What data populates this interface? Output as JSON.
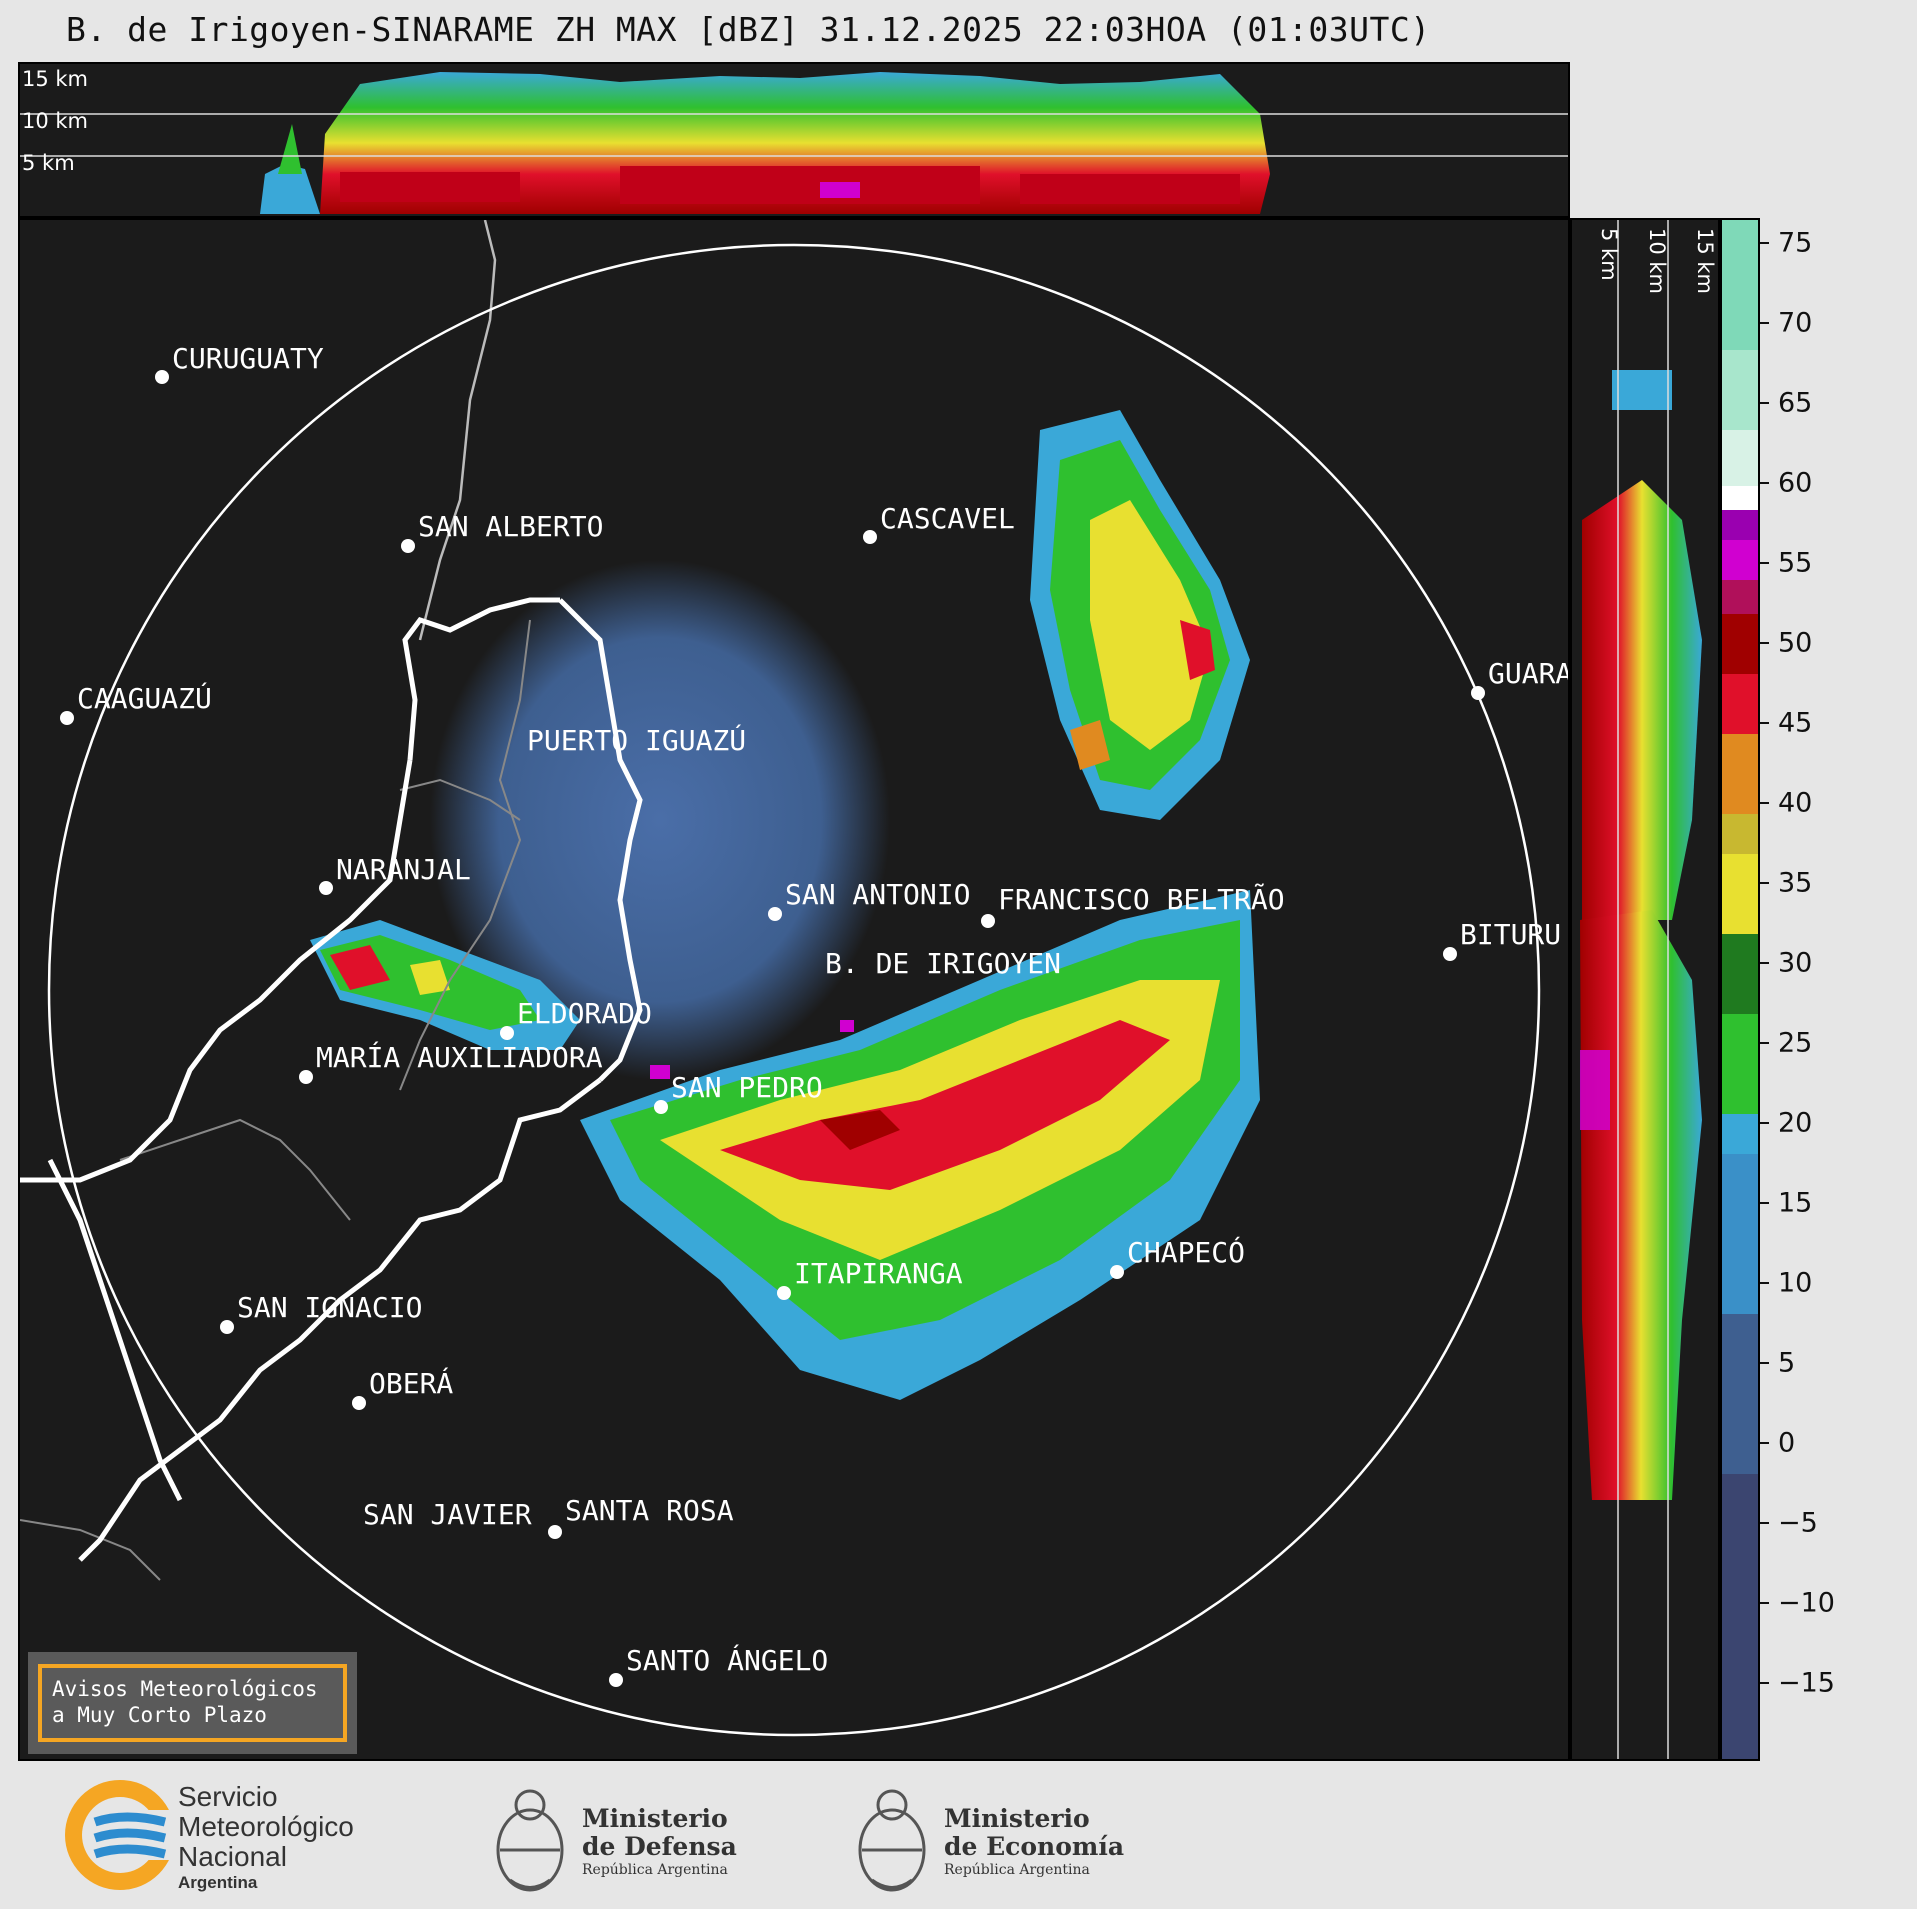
{
  "title": "B. de Irigoyen-SINARAME ZH MAX [dBZ] 31.12.2025 22:03HOA (01:03UTC)",
  "top_panel": {
    "altitude_labels": [
      "15 km",
      "10 km",
      "5 km"
    ]
  },
  "side_panel": {
    "altitude_labels": [
      "5 km",
      "10 km",
      "15 km"
    ]
  },
  "colorbar": {
    "ticks": [
      "75",
      "70",
      "65",
      "60",
      "55",
      "50",
      "45",
      "40",
      "35",
      "30",
      "25",
      "20",
      "15",
      "10",
      "5",
      "0",
      "−5",
      "−10",
      "−15"
    ],
    "colors": {
      "band_60_75": "#7fd9b8",
      "white_60": "#ffffff",
      "magenta": "#d000d0",
      "purple": "#9a00b0",
      "dark_red": "#a00000",
      "red": "#e0102a",
      "orange": "#e08a20",
      "yellow": "#e8e030",
      "green": "#2fc02f",
      "dark_green": "#1f7a1f",
      "light_blue": "#3aa8d8",
      "blue": "#3a7ab8",
      "steel": "#3e5f90",
      "navy": "#3b4570"
    }
  },
  "cities": [
    {
      "name": "CURUGUATY"
    },
    {
      "name": "SAN ALBERTO"
    },
    {
      "name": "CASCAVEL"
    },
    {
      "name": "CAAGUAZÚ"
    },
    {
      "name": "GUARA"
    },
    {
      "name": "PUERTO IGUAZÚ"
    },
    {
      "name": "NARANJAL"
    },
    {
      "name": "SAN ANTONIO"
    },
    {
      "name": "FRANCISCO BELTRÃO"
    },
    {
      "name": "BITURU"
    },
    {
      "name": "B. DE IRIGOYEN"
    },
    {
      "name": "ELDORADO"
    },
    {
      "name": "MARÍA AUXILIADORA"
    },
    {
      "name": "SAN PEDRO"
    },
    {
      "name": "ITAPIRANGA"
    },
    {
      "name": "CHAPECÓ"
    },
    {
      "name": "SAN IGNACIO"
    },
    {
      "name": "OBERÁ"
    },
    {
      "name": "SAN JAVIER"
    },
    {
      "name": "SANTA ROSA"
    },
    {
      "name": "SANTO ÁNGELO"
    }
  ],
  "alerts_box": {
    "line1": "Avisos Meteorológicos",
    "line2": "a Muy Corto Plazo"
  },
  "footer": {
    "smn": {
      "line1": "Servicio",
      "line2": "Meteorológico",
      "line3": "Nacional",
      "line4": "Argentina"
    },
    "defensa": {
      "line1": "Ministerio",
      "line2": "de Defensa",
      "line3": "República Argentina"
    },
    "economia": {
      "line1": "Ministerio",
      "line2": "de Economía",
      "line3": "República Argentina"
    }
  }
}
